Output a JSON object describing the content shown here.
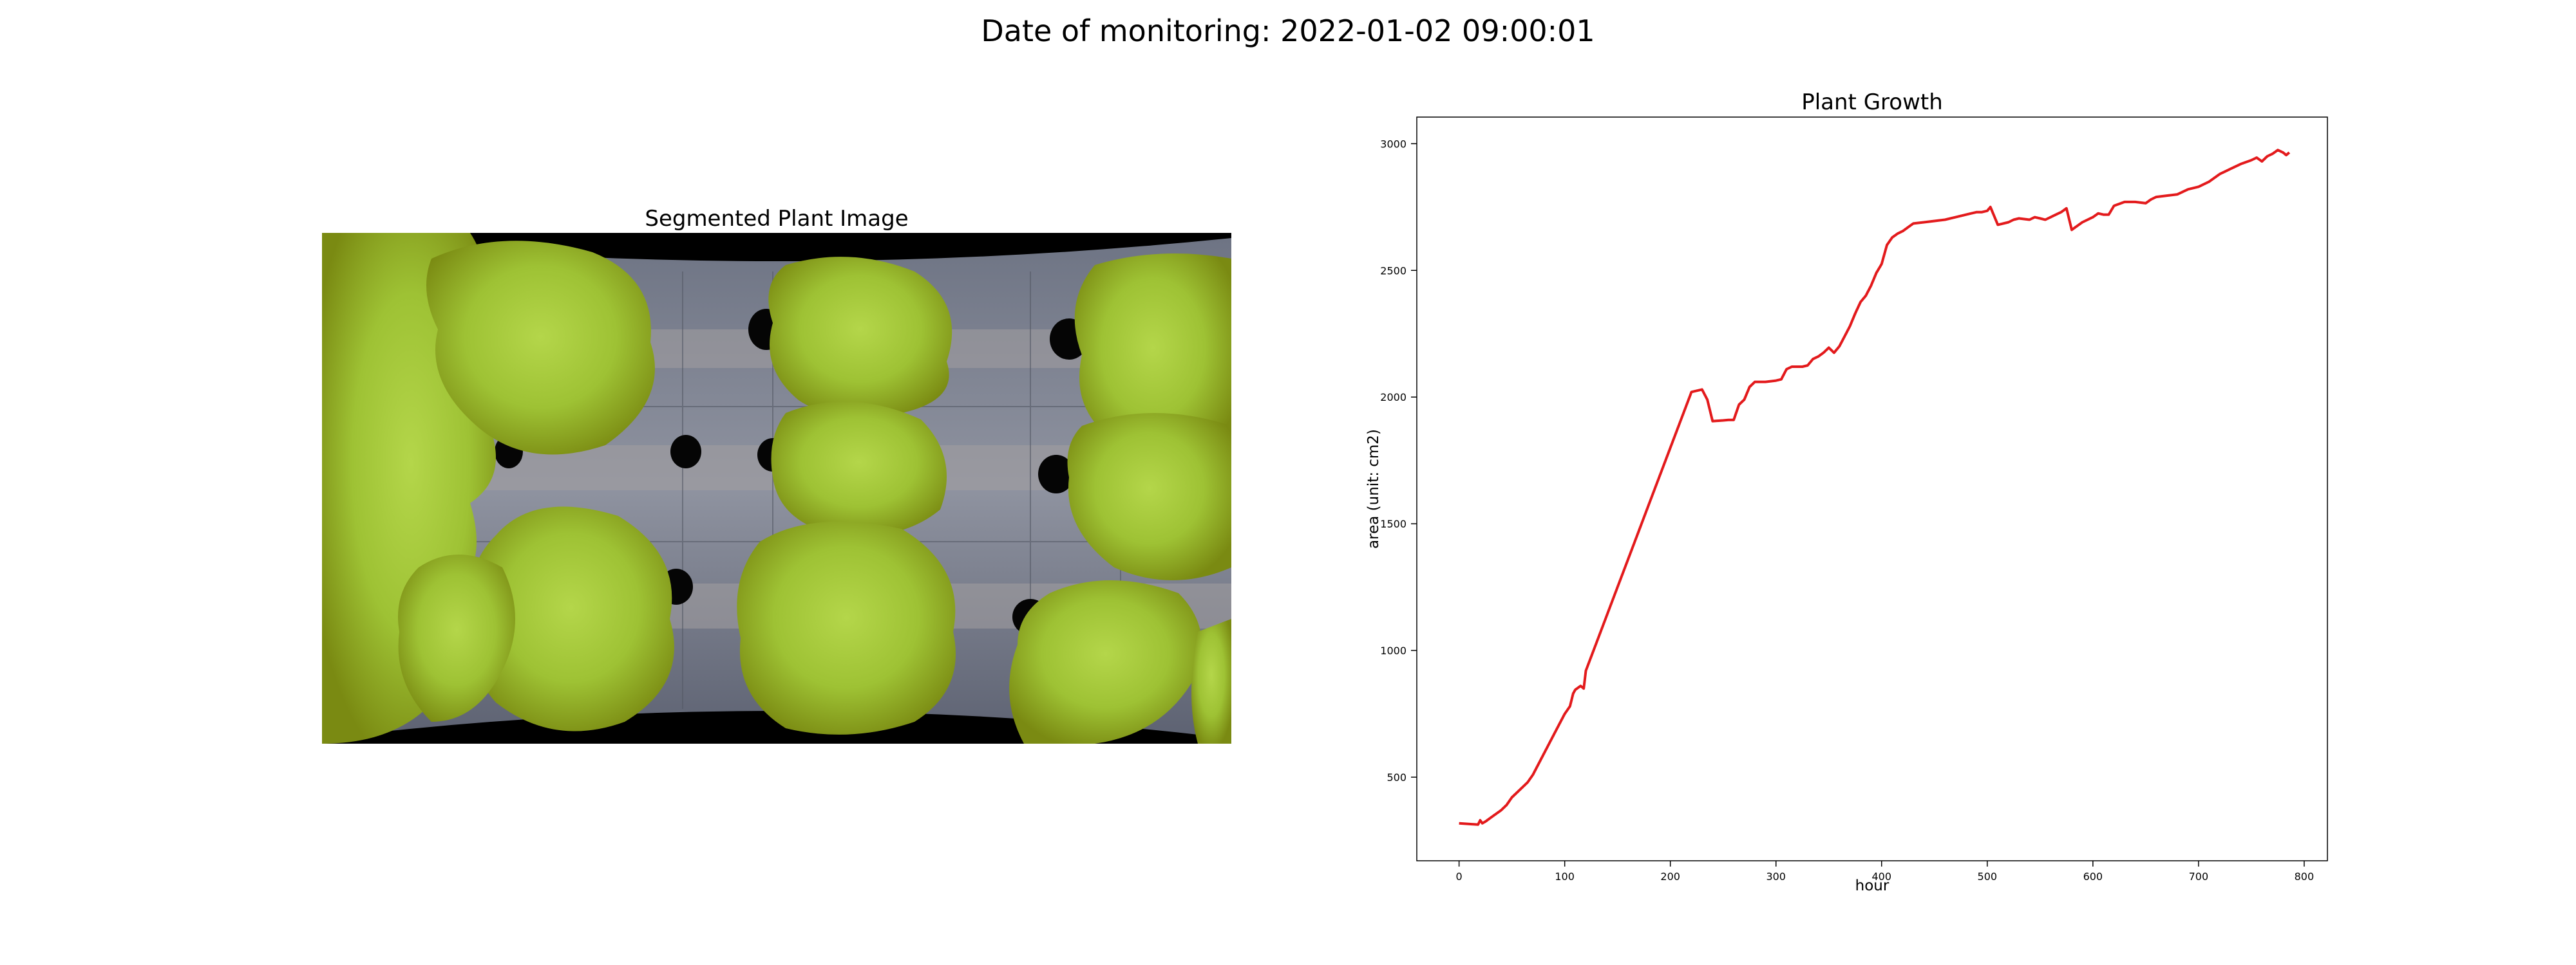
{
  "figure": {
    "suptitle": "Date of monitoring: 2022-01-02 09:00:01"
  },
  "image_panel": {
    "title": "Segmented Plant Image",
    "colors": {
      "background": "#000000",
      "tray": "#8c8f99",
      "pipe": "#a39ea0",
      "hole": "#050505",
      "plant_dark": "#7a8a12",
      "plant_light": "#9ec234",
      "plant_highlight": "#b4d64a"
    }
  },
  "chart_data": {
    "type": "line",
    "title": "Plant Growth",
    "xlabel": "hour",
    "ylabel": "area (unit: cm2)",
    "xlim": [
      -40,
      822
    ],
    "ylim": [
      170,
      3105
    ],
    "xticks": [
      0,
      100,
      200,
      300,
      400,
      500,
      600,
      700,
      800
    ],
    "yticks": [
      500,
      1000,
      1500,
      2000,
      2500,
      3000
    ],
    "grid": false,
    "color": "#e31a1c",
    "x": [
      0,
      10,
      18,
      20,
      22,
      25,
      30,
      40,
      45,
      50,
      60,
      65,
      70,
      80,
      90,
      100,
      105,
      108,
      110,
      115,
      118,
      120,
      130,
      140,
      150,
      160,
      170,
      180,
      190,
      200,
      210,
      220,
      230,
      235,
      240,
      250,
      255,
      260,
      265,
      270,
      275,
      280,
      290,
      300,
      305,
      310,
      315,
      320,
      325,
      330,
      335,
      340,
      345,
      350,
      355,
      360,
      365,
      370,
      375,
      380,
      385,
      390,
      395,
      400,
      405,
      410,
      415,
      420,
      425,
      430,
      440,
      450,
      460,
      470,
      480,
      490,
      495,
      500,
      503,
      510,
      520,
      525,
      530,
      540,
      545,
      550,
      555,
      560,
      565,
      570,
      575,
      580,
      590,
      600,
      605,
      610,
      615,
      620,
      630,
      640,
      650,
      655,
      660,
      670,
      680,
      690,
      695,
      700,
      710,
      720,
      725,
      730,
      740,
      750,
      755,
      760,
      765,
      770,
      775,
      780,
      783,
      786
    ],
    "y": [
      318,
      315,
      313,
      330,
      318,
      325,
      340,
      370,
      390,
      420,
      460,
      480,
      510,
      590,
      670,
      750,
      780,
      830,
      845,
      860,
      850,
      920,
      1030,
      1140,
      1250,
      1360,
      1470,
      1580,
      1690,
      1800,
      1910,
      2020,
      2030,
      1990,
      1905,
      1908,
      1910,
      1910,
      1970,
      1990,
      2040,
      2060,
      2060,
      2065,
      2070,
      2110,
      2120,
      2120,
      2120,
      2125,
      2150,
      2160,
      2175,
      2195,
      2175,
      2200,
      2240,
      2280,
      2330,
      2375,
      2400,
      2440,
      2490,
      2525,
      2600,
      2630,
      2645,
      2655,
      2670,
      2685,
      2690,
      2695,
      2700,
      2710,
      2720,
      2730,
      2730,
      2735,
      2750,
      2680,
      2690,
      2700,
      2705,
      2700,
      2710,
      2705,
      2700,
      2710,
      2720,
      2730,
      2745,
      2660,
      2690,
      2710,
      2725,
      2720,
      2720,
      2755,
      2770,
      2770,
      2765,
      2780,
      2790,
      2795,
      2800,
      2820,
      2825,
      2830,
      2850,
      2880,
      2890,
      2900,
      2920,
      2935,
      2945,
      2930,
      2950,
      2960,
      2975,
      2965,
      2955,
      2965
    ]
  }
}
